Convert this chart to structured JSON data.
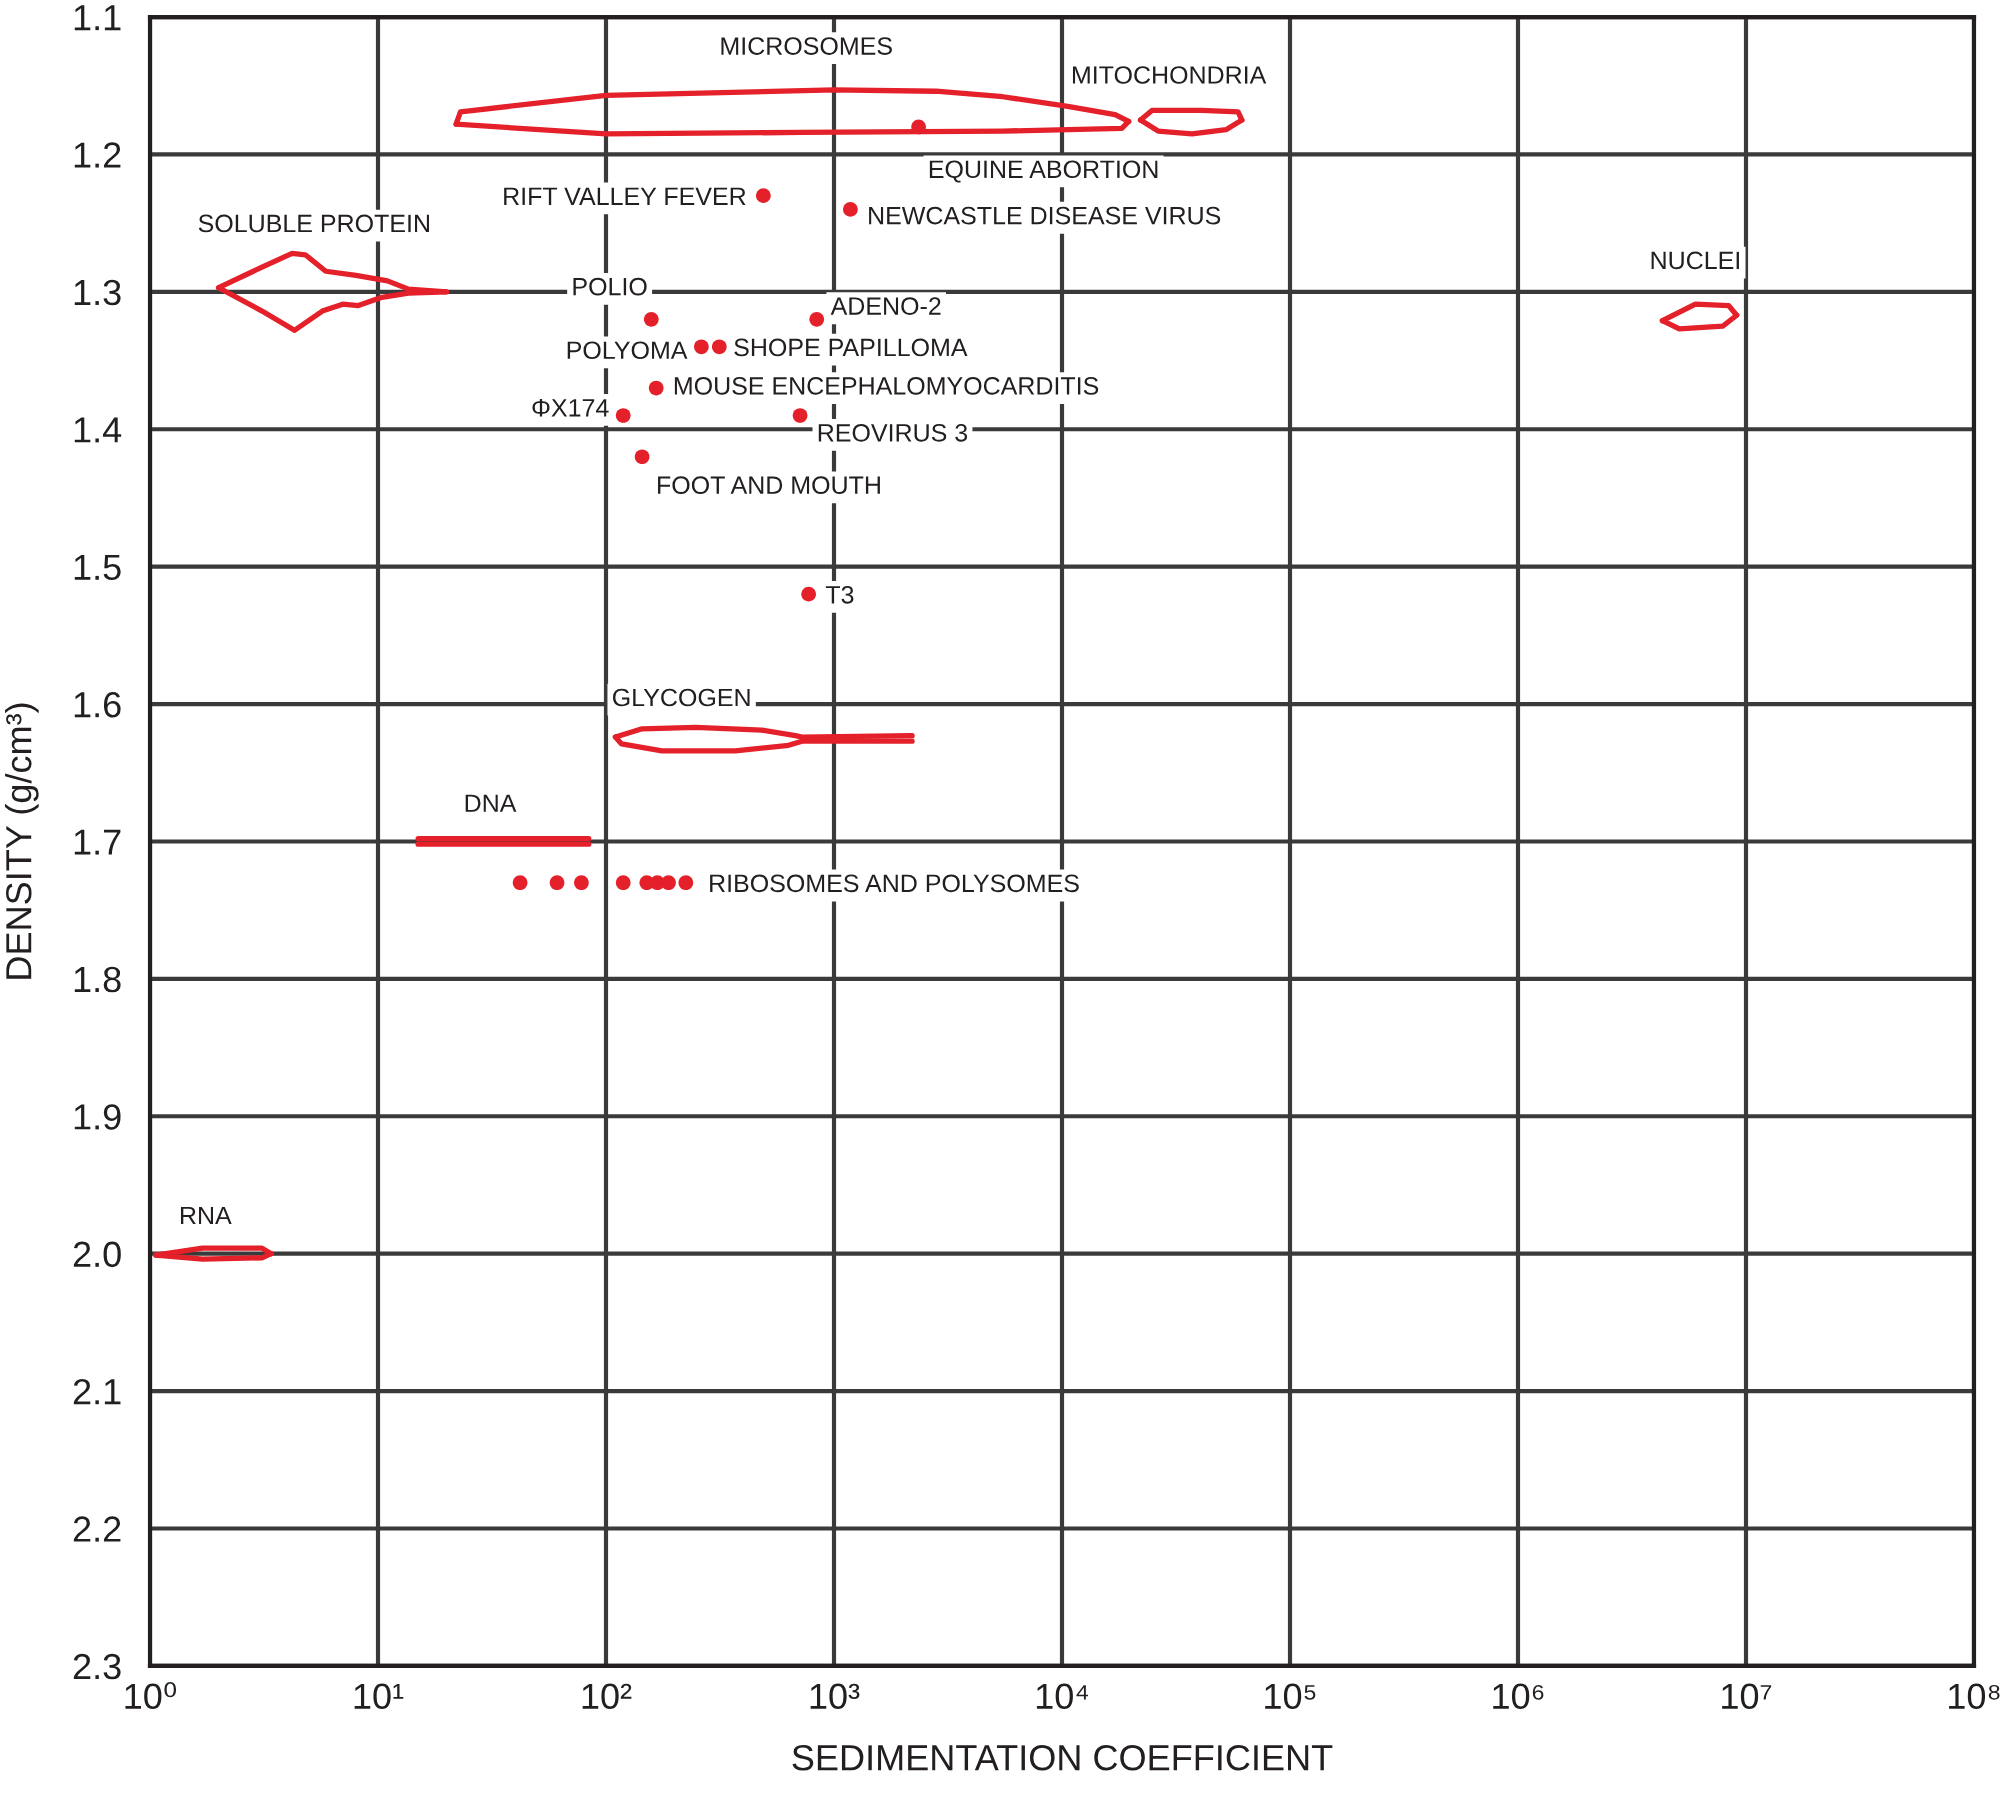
{
  "chart_data": {
    "type": "scatter",
    "xlabel": "SEDIMENTATION COEFFICIENT",
    "ylabel": "DENSITY (g/cm³)",
    "log": "x",
    "grid": true,
    "xlim": [
      1,
      100000000
    ],
    "ylim": [
      2.3,
      1.1
    ],
    "xticks": [
      {
        "value": 1,
        "label": "10⁰"
      },
      {
        "value": 10,
        "label": "10¹"
      },
      {
        "value": 100,
        "label": "10²"
      },
      {
        "value": 1000,
        "label": "10³"
      },
      {
        "value": 10000,
        "label": "10⁴"
      },
      {
        "value": 100000,
        "label": "10⁵"
      },
      {
        "value": 1000000,
        "label": "10⁶"
      },
      {
        "value": 10000000,
        "label": "10⁷"
      },
      {
        "value": 100000000,
        "label": "10⁸"
      }
    ],
    "yticks": [
      1.1,
      1.2,
      1.3,
      1.4,
      1.5,
      1.6,
      1.7,
      1.8,
      1.9,
      {
        "value": 2.0,
        "label": "2.0"
      },
      2.1,
      2.2,
      2.3
    ],
    "series": [
      {
        "color": "#e4202a",
        "marker": "circle",
        "x": [
          490,
          2350,
          1180,
          158,
          840,
          262,
          314,
          166,
          119,
          710,
          144,
          774,
          42,
          61,
          78,
          119,
          151,
          168,
          188,
          224
        ],
        "values": [
          1.23,
          1.18,
          1.24,
          1.32,
          1.32,
          1.34,
          1.34,
          1.37,
          1.39,
          1.39,
          1.42,
          1.52,
          1.73,
          1.73,
          1.73,
          1.73,
          1.73,
          1.73,
          1.73,
          1.73
        ]
      },
      {
        "type": "line",
        "color": "#e4202a",
        "x": [
          22,
          23,
          100,
          1000,
          2800,
          5500,
          10600,
          17100,
          19600
        ],
        "values": [
          1.178,
          1.169,
          1.157,
          1.153,
          1.154,
          1.158,
          1.165,
          1.171,
          1.176
        ]
      },
      {
        "type": "line",
        "color": "#e4202a",
        "x": [
          22,
          100,
          720,
          5500,
          18300,
          19600
        ],
        "values": [
          1.178,
          1.185,
          1.184,
          1.183,
          1.181,
          1.176
        ]
      },
      {
        "type": "line",
        "color": "#e4202a",
        "x": [
          22100,
          24800,
          41100,
          59200,
          61500
        ],
        "values": [
          1.175,
          1.168,
          1.168,
          1.169,
          1.175
        ]
      },
      {
        "type": "line",
        "color": "#e4202a",
        "x": [
          22100,
          26400,
          37200,
          52400,
          61500
        ],
        "values": [
          1.175,
          1.183,
          1.185,
          1.182,
          1.175
        ]
      },
      {
        "type": "line",
        "color": "#e4202a",
        "x": [
          2.0,
          3.1,
          4.2,
          4.8,
          5.9,
          8.0,
          11,
          13.6,
          20
        ],
        "values": [
          1.297,
          1.282,
          1.272,
          1.273,
          1.285,
          1.288,
          1.292,
          1.298,
          1.3
        ]
      },
      {
        "type": "line",
        "color": "#e4202a",
        "x": [
          2.0,
          3.1,
          4.3,
          5.7,
          7.0,
          8.2,
          10.4,
          13.6,
          20
        ],
        "values": [
          1.297,
          1.314,
          1.328,
          1.314,
          1.309,
          1.31,
          1.304,
          1.301,
          1.3
        ]
      },
      {
        "type": "line",
        "color": "#e4202a",
        "x": [
          4300000,
          6000000,
          8400000,
          9100000
        ],
        "values": [
          1.321,
          1.309,
          1.31,
          1.317
        ]
      },
      {
        "type": "line",
        "color": "#e4202a",
        "x": [
          4300000,
          5100000,
          7900000,
          9100000
        ],
        "values": [
          1.321,
          1.327,
          1.325,
          1.317
        ]
      },
      {
        "type": "line",
        "color": "#e4202a",
        "x": [
          110,
          144,
          247,
          483,
          677,
          724,
          2200
        ],
        "values": [
          1.624,
          1.618,
          1.617,
          1.619,
          1.623,
          1.624,
          1.623
        ]
      },
      {
        "type": "line",
        "color": "#e4202a",
        "x": [
          110,
          117,
          176,
          369,
          632,
          724,
          2200
        ],
        "values": [
          1.624,
          1.629,
          1.634,
          1.634,
          1.63,
          1.627,
          1.627
        ]
      },
      {
        "type": "line",
        "color": "#e4202a",
        "x": [
          15,
          31,
          84
        ],
        "values": [
          1.698,
          1.698,
          1.698
        ]
      },
      {
        "type": "line",
        "color": "#e4202a",
        "x": [
          15,
          84
        ],
        "values": [
          1.702,
          1.702
        ]
      },
      {
        "type": "line",
        "color": "#e4202a",
        "x": [
          1.06,
          1.7,
          3.1,
          3.4
        ],
        "values": [
          2.001,
          1.996,
          1.996,
          2.0
        ]
      },
      {
        "type": "line",
        "color": "#e4202a",
        "x": [
          1.06,
          1.7,
          3.1,
          3.4
        ],
        "values": [
          2.001,
          2.004,
          2.003,
          2.0
        ]
      }
    ],
    "annotations": [
      {
        "text": "MICROSOMES",
        "x": 1000,
        "y": 1.153
      },
      {
        "text": "MITOCHONDRIA",
        "x": 41100,
        "y": 1.168
      },
      {
        "text": "EQUINE ABORTION",
        "x": 2350,
        "y": 1.18
      },
      {
        "text": "RIFT VALLEY FEVER",
        "x": 490,
        "y": 1.23
      },
      {
        "text": "NEWCASTLE DISEASE VIRUS",
        "x": 1180,
        "y": 1.24
      },
      {
        "text": "SOLUBLE PROTEIN",
        "x": 4.2,
        "y": 1.272
      },
      {
        "text": "POLIO",
        "x": 158,
        "y": 1.32
      },
      {
        "text": "ADENO-2",
        "x": 840,
        "y": 1.32
      },
      {
        "text": "POLYOMA",
        "x": 262,
        "y": 1.34
      },
      {
        "text": "SHOPE PAPILLOMA",
        "x": 314,
        "y": 1.34
      },
      {
        "text": "MOUSE ENCEPHALOMYOCARDITIS",
        "x": 166,
        "y": 1.37
      },
      {
        "text": "ΦX174",
        "x": 119,
        "y": 1.39
      },
      {
        "text": "REOVIRUS 3",
        "x": 710,
        "y": 1.39
      },
      {
        "text": "FOOT AND MOUTH",
        "x": 144,
        "y": 1.42
      },
      {
        "text": "T3",
        "x": 774,
        "y": 1.52
      },
      {
        "text": "GLYCOGEN",
        "x": 247,
        "y": 1.617
      },
      {
        "text": "DNA",
        "x": 31,
        "y": 1.698
      },
      {
        "text": "RIBOSOMES AND POLYSOMES",
        "x": 224,
        "y": 1.73
      },
      {
        "text": "NUCLEI",
        "x": 6000000,
        "y": 1.309
      },
      {
        "text": "RNA",
        "x": 1.7,
        "y": 1.996
      }
    ]
  }
}
